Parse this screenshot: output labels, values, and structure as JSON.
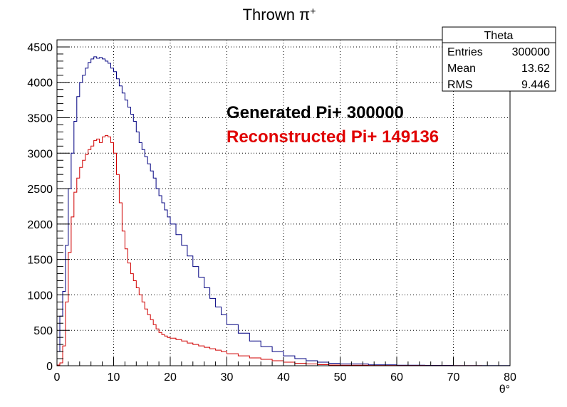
{
  "chart_data": {
    "type": "histogram",
    "title": "Thrown π",
    "title_sup": "+",
    "xlabel": "θ°",
    "ylabel": "",
    "xlim": [
      0,
      80
    ],
    "ylim": [
      0,
      4600
    ],
    "x_ticks": [
      "0",
      "10",
      "20",
      "30",
      "40",
      "50",
      "60",
      "70",
      "80"
    ],
    "y_ticks": [
      "0",
      "500",
      "1000",
      "1500",
      "2000",
      "2500",
      "3000",
      "3500",
      "4000",
      "4500"
    ],
    "grid": true,
    "colors": {
      "generated": "#000080",
      "reconstructed": "#d00000"
    },
    "annotations": [
      {
        "text": "Generated Pi+ 300000",
        "color": "#000000"
      },
      {
        "text": "Reconstructed Pi+ 149136",
        "color": "#e00000"
      }
    ],
    "stats_box": {
      "title": "Theta",
      "rows": [
        {
          "label": "Entries",
          "value": "300000"
        },
        {
          "label": "Mean",
          "value": "13.62"
        },
        {
          "label": "RMS",
          "value": "9.446"
        }
      ]
    },
    "series": [
      {
        "name": "Generated Pi+",
        "x": [
          0,
          0.5,
          1,
          1.5,
          2,
          2.5,
          3,
          3.5,
          4,
          4.5,
          5,
          5.5,
          6,
          6.5,
          7,
          7.5,
          8,
          8.5,
          9,
          9.5,
          10,
          10.5,
          11,
          11.5,
          12,
          12.5,
          13,
          13.5,
          14,
          14.5,
          15,
          15.5,
          16,
          16.5,
          17,
          17.5,
          18,
          18.5,
          19,
          19.5,
          20,
          21,
          22,
          23,
          24,
          25,
          26,
          27,
          28,
          29,
          30,
          32,
          34,
          36,
          38,
          40,
          42,
          44,
          46,
          48,
          50,
          55,
          60,
          65,
          70,
          75,
          80
        ],
        "y": [
          200,
          700,
          1050,
          1700,
          2500,
          3000,
          3450,
          3800,
          4000,
          4100,
          4200,
          4280,
          4330,
          4360,
          4340,
          4350,
          4330,
          4300,
          4270,
          4200,
          4150,
          4050,
          3950,
          3850,
          3750,
          3650,
          3550,
          3450,
          3300,
          3150,
          3050,
          2950,
          2850,
          2750,
          2650,
          2500,
          2400,
          2300,
          2200,
          2100,
          2000,
          1850,
          1700,
          1550,
          1400,
          1250,
          1100,
          950,
          830,
          720,
          580,
          460,
          350,
          270,
          200,
          140,
          100,
          70,
          50,
          35,
          25,
          12,
          7,
          5,
          3,
          2,
          1
        ]
      },
      {
        "name": "Reconstructed Pi+",
        "x": [
          0,
          0.5,
          1,
          1.5,
          2,
          2.5,
          3,
          3.5,
          4,
          4.5,
          5,
          5.5,
          6,
          6.5,
          7,
          7.5,
          8,
          8.5,
          9,
          9.5,
          10,
          10.5,
          11,
          11.5,
          12,
          12.5,
          13,
          13.5,
          14,
          14.5,
          15,
          15.5,
          16,
          16.5,
          17,
          17.5,
          18,
          18.5,
          19,
          19.5,
          20,
          21,
          22,
          23,
          24,
          25,
          26,
          27,
          28,
          29,
          30,
          32,
          34,
          36,
          38,
          40,
          42,
          44,
          46,
          48,
          50,
          55,
          60,
          65,
          70,
          75,
          80
        ],
        "y": [
          10,
          40,
          280,
          900,
          1600,
          2100,
          2450,
          2650,
          2800,
          2900,
          2980,
          3050,
          3100,
          3180,
          3200,
          3150,
          3230,
          3250,
          3230,
          3150,
          3000,
          2700,
          2300,
          1900,
          1650,
          1450,
          1300,
          1200,
          1100,
          1000,
          900,
          800,
          720,
          650,
          580,
          520,
          470,
          440,
          420,
          400,
          390,
          370,
          350,
          320,
          300,
          280,
          260,
          240,
          220,
          200,
          170,
          140,
          110,
          90,
          70,
          50,
          35,
          25,
          15,
          10,
          7,
          4,
          2,
          1,
          1,
          0,
          0
        ]
      }
    ]
  }
}
